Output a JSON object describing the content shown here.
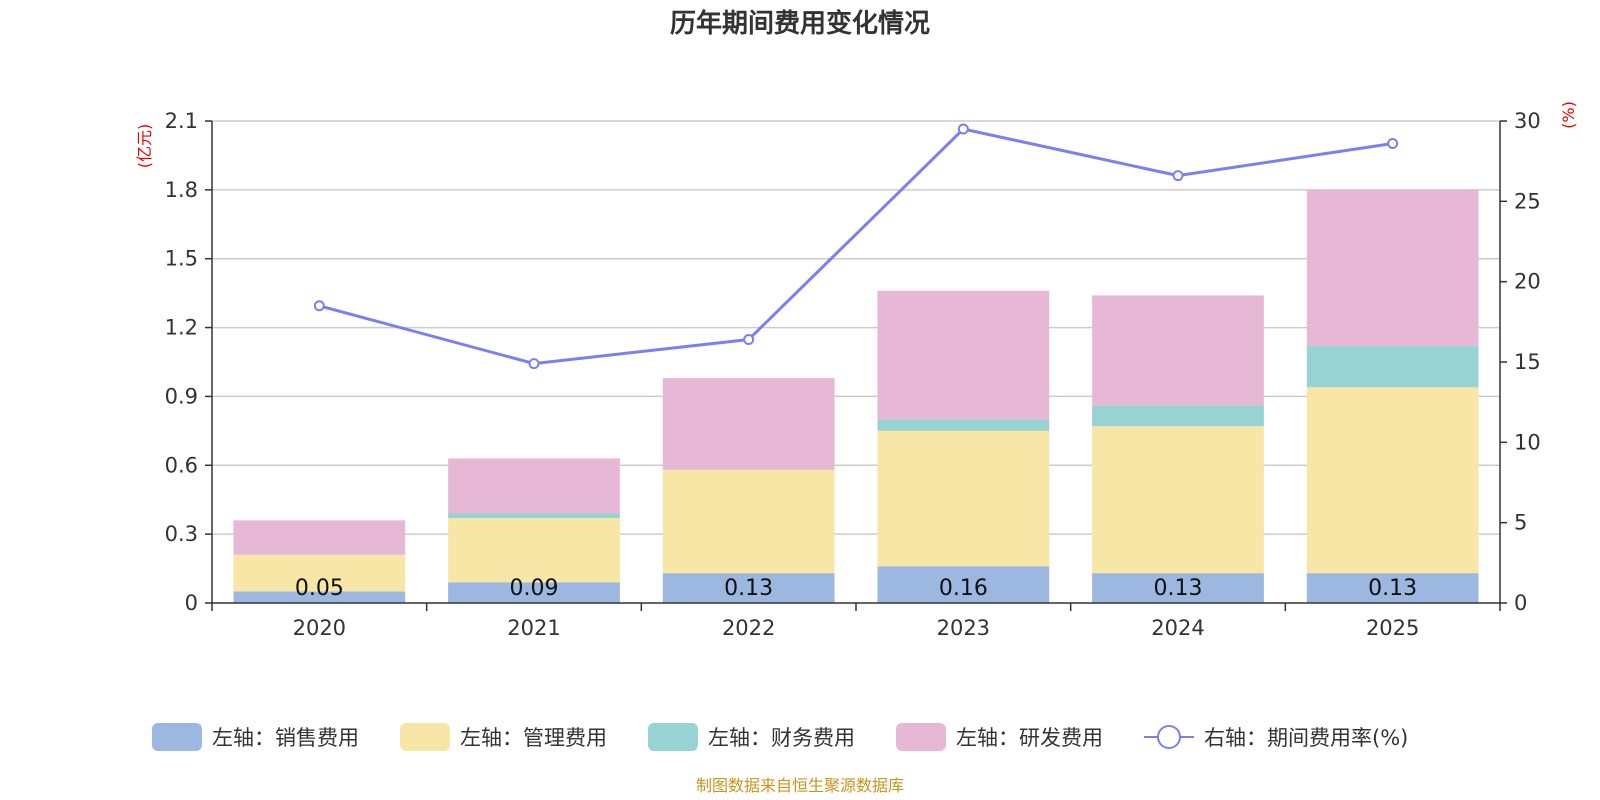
{
  "chart_data": {
    "type": "bar",
    "stacked": true,
    "title": "历年期间费用变化情况",
    "categories": [
      "2020",
      "2021",
      "2022",
      "2023",
      "2024",
      "2025"
    ],
    "left_axis": {
      "unit": "(亿元)",
      "ylim": [
        0,
        2.1
      ],
      "ticks": [
        "0",
        "0.3",
        "0.6",
        "0.9",
        "1.2",
        "1.5",
        "1.8",
        "2.1"
      ]
    },
    "right_axis": {
      "unit": "(%)",
      "ylim": [
        0,
        30
      ],
      "ticks": [
        "0",
        "5",
        "10",
        "15",
        "20",
        "25",
        "30"
      ]
    },
    "series": [
      {
        "name": "左轴：销售费用",
        "axis": "left",
        "color": "#9cb7e0",
        "values": [
          0.05,
          0.09,
          0.13,
          0.16,
          0.13,
          0.13
        ],
        "labels": [
          "0.05",
          "0.09",
          "0.13",
          "0.16",
          "0.13",
          "0.13"
        ]
      },
      {
        "name": "左轴：管理费用",
        "axis": "left",
        "color": "#f7e6a6",
        "values": [
          0.16,
          0.28,
          0.45,
          0.59,
          0.64,
          0.81
        ]
      },
      {
        "name": "左轴：财务费用",
        "axis": "left",
        "color": "#97d3d3",
        "values": [
          0.0,
          0.02,
          0.0,
          0.05,
          0.09,
          0.18
        ]
      },
      {
        "name": "左轴：研发费用",
        "axis": "left",
        "color": "#e6b8d6",
        "values": [
          0.15,
          0.24,
          0.4,
          0.56,
          0.48,
          0.68
        ]
      },
      {
        "name": "右轴：期间费用率(%)",
        "axis": "right",
        "type": "line",
        "color": "#7b7ff0",
        "values": [
          18.5,
          14.9,
          16.4,
          29.5,
          26.6,
          28.6
        ]
      }
    ],
    "source": "制图数据来自恒生聚源数据库"
  }
}
